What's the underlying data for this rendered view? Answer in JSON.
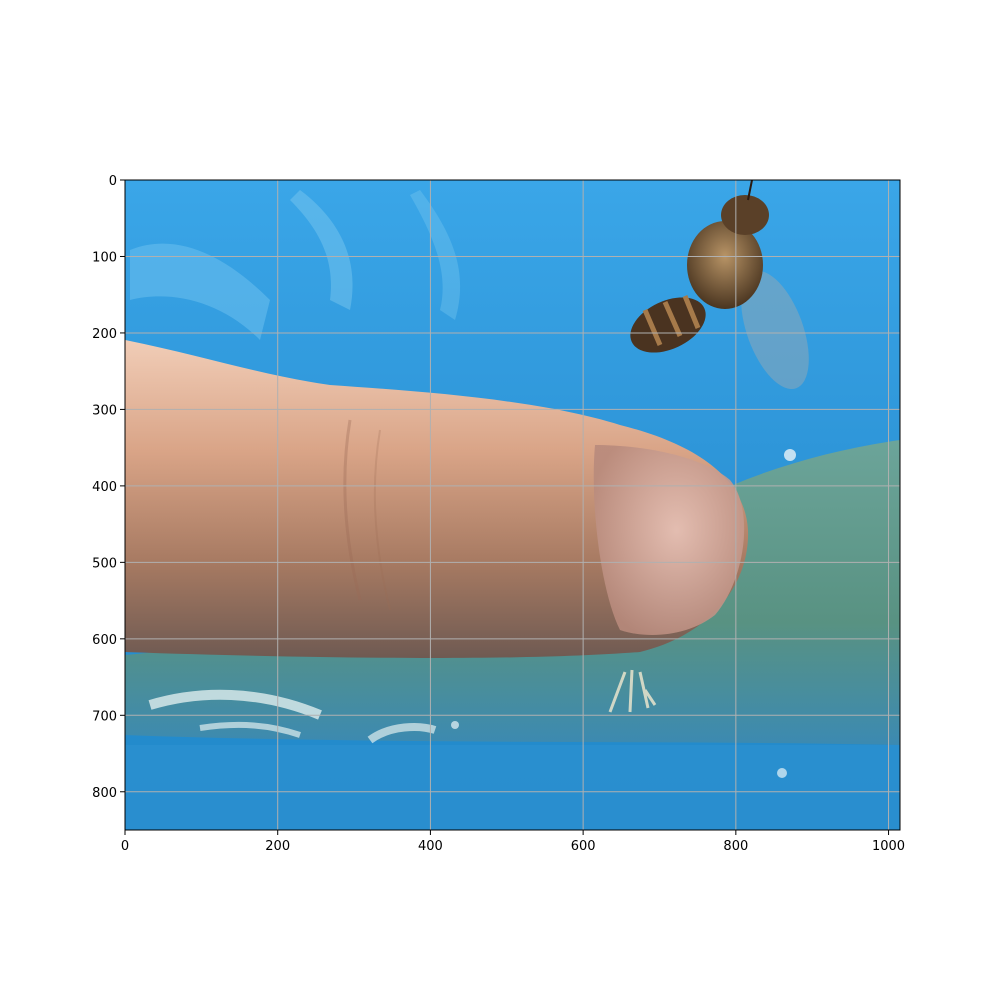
{
  "figure": {
    "image_content": [
      "fingertip-with-nail",
      "honeybee-upper-right",
      "blue-surface-background",
      "shallow-water-pool"
    ],
    "colors": {
      "background": "#ffffff",
      "gridline": "#b0b0b0",
      "axis": "#000000",
      "blue-surface": "#2f9ad8",
      "finger-skin": "#d8a488",
      "water": "#5f9a86",
      "bee": "#5a3d24"
    }
  },
  "axes": {
    "x": {
      "range": [
        0,
        1015
      ],
      "ticks": [
        0,
        200,
        400,
        600,
        800,
        1000
      ],
      "tick_labels": [
        "0",
        "200",
        "400",
        "600",
        "800",
        "1000"
      ]
    },
    "y": {
      "range": [
        0,
        850
      ],
      "inverted": true,
      "ticks": [
        0,
        100,
        200,
        300,
        400,
        500,
        600,
        700,
        800
      ],
      "tick_labels": [
        "0",
        "100",
        "200",
        "300",
        "400",
        "500",
        "600",
        "700",
        "800"
      ]
    },
    "grid": true
  }
}
